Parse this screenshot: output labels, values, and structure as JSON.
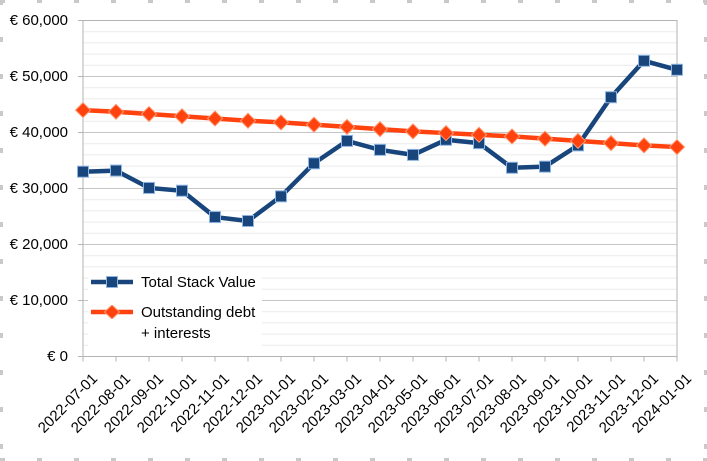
{
  "chart_data": {
    "type": "line",
    "title": "",
    "x": [
      "2022-07-01",
      "2022-08-01",
      "2022-09-01",
      "2022-10-01",
      "2022-11-01",
      "2022-12-01",
      "2023-01-01",
      "2023-02-01",
      "2023-03-01",
      "2023-04-01",
      "2023-05-01",
      "2023-06-01",
      "2023-07-01",
      "2023-08-01",
      "2023-09-01",
      "2023-10-01",
      "2023-11-01",
      "2023-12-01",
      "2024-01-01"
    ],
    "series": [
      {
        "name": "Total Stack Value",
        "marker": "square",
        "color": "#17457c",
        "marker_border": "#8db4e2",
        "values": [
          33000,
          33200,
          30100,
          29600,
          24900,
          24200,
          28600,
          34500,
          38500,
          36900,
          36000,
          38700,
          38100,
          33700,
          33900,
          37700,
          46300,
          52800,
          51200
        ]
      },
      {
        "name": "Outstanding debt + interests",
        "marker": "diamond",
        "color": "#ff420e",
        "marker_border": "#ff9b73",
        "values": [
          44000,
          43700,
          43300,
          42900,
          42500,
          42100,
          41800,
          41400,
          41000,
          40600,
          40200,
          39900,
          39600,
          39300,
          38900,
          38500,
          38100,
          37700,
          37400
        ]
      }
    ],
    "ylim": [
      0,
      60000
    ],
    "y_major_step": 10000,
    "y_minor_step": 2000,
    "y_ticks": [
      {
        "value": 0,
        "label": "€ 0"
      },
      {
        "value": 10000,
        "label": "€ 10,000"
      },
      {
        "value": 20000,
        "label": "€ 20,000"
      },
      {
        "value": 30000,
        "label": "€ 30,000"
      },
      {
        "value": 40000,
        "label": "€ 40,000"
      },
      {
        "value": 50000,
        "label": "€ 50,000"
      },
      {
        "value": 60000,
        "label": "€ 60,000"
      }
    ],
    "grid": true,
    "legend_position": "inside-bottom-left"
  },
  "legend": {
    "item1_label": "Total Stack Value",
    "item2_label_line1": "Outstanding debt",
    "item2_label_line2": "+ interests"
  },
  "colors": {
    "series1": "#17457c",
    "series2": "#ff420e",
    "grid_major": "#c6c6c6",
    "grid_minor": "#ebebeb",
    "axis": "#b3b3b3",
    "text": "#000000"
  }
}
